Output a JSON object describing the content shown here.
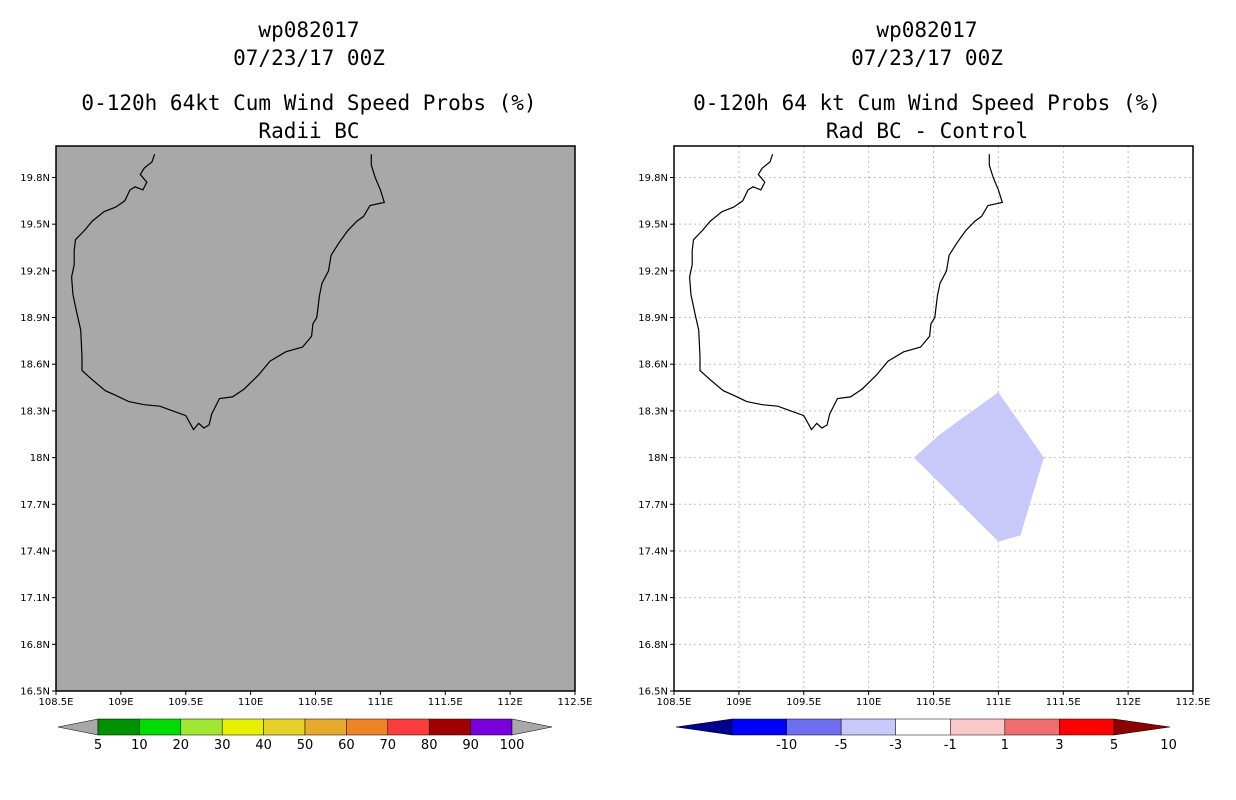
{
  "colors": {
    "land_fill_left": "#a8a8a8",
    "grid": "#bfbfbf",
    "diff_polygon": "#c8c8fa"
  },
  "left_panel": {
    "storm_id": "wp082017",
    "datetime": "07/23/17 00Z",
    "title": "0-120h 64kt Cum Wind Speed Probs (%)",
    "subtitle": "Radii BC",
    "lat_ticks": [
      "19.8N",
      "19.5N",
      "19.2N",
      "18.9N",
      "18.6N",
      "18.3N",
      "18N",
      "17.7N",
      "17.4N",
      "17.1N",
      "16.8N",
      "16.5N"
    ],
    "lon_ticks": [
      "108.5E",
      "109E",
      "109.5E",
      "110E",
      "110.5E",
      "111E",
      "111.5E",
      "112E",
      "112.5E"
    ],
    "colorbar": {
      "colors": [
        "#009100",
        "#00dc00",
        "#a0e632",
        "#e6f000",
        "#e6d228",
        "#e6aa2d",
        "#f08228",
        "#fa3c3c",
        "#a00000",
        "#7800dc"
      ],
      "labels": [
        "5",
        "10",
        "20",
        "30",
        "40",
        "50",
        "60",
        "70",
        "80",
        "90",
        "100"
      ]
    }
  },
  "right_panel": {
    "storm_id": "wp082017",
    "datetime": "07/23/17 00Z",
    "title": "0-120h 64 kt Cum Wind Speed Probs (%)",
    "subtitle": "Rad BC - Control",
    "lat_ticks": [
      "19.8N",
      "19.5N",
      "19.2N",
      "18.9N",
      "18.6N",
      "18.3N",
      "18N",
      "17.7N",
      "17.4N",
      "17.1N",
      "16.8N",
      "16.5N"
    ],
    "lon_ticks": [
      "108.5E",
      "109E",
      "109.5E",
      "110E",
      "110.5E",
      "111E",
      "111.5E",
      "112E",
      "112.5E"
    ],
    "colorbar": {
      "colors": [
        "#00008c",
        "#0000ff",
        "#6e6ef0",
        "#c8c8fa",
        "#ffffff",
        "#fac8c8",
        "#f06e6e",
        "#ff0000",
        "#8c0000"
      ],
      "labels": [
        "-10",
        "-5",
        "-3",
        "-1",
        "1",
        "3",
        "5",
        "10"
      ]
    },
    "difference_region": {
      "value_range": "-1 to -3",
      "lonlat": [
        [
          110.35,
          18.0
        ],
        [
          110.55,
          18.15
        ],
        [
          111.0,
          18.42
        ],
        [
          111.35,
          18.0
        ],
        [
          111.17,
          17.5
        ],
        [
          111.0,
          17.46
        ],
        [
          110.35,
          18.0
        ]
      ]
    }
  },
  "map": {
    "lon_range": [
      108.5,
      112.5
    ],
    "lat_range": [
      16.5,
      19.95
    ],
    "coast_lonlat": [
      [
        109.26,
        19.95
      ],
      [
        109.24,
        19.9
      ],
      [
        109.18,
        19.86
      ],
      [
        109.15,
        19.82
      ],
      [
        109.2,
        19.77
      ],
      [
        109.17,
        19.72
      ],
      [
        109.11,
        19.74
      ],
      [
        109.07,
        19.72
      ],
      [
        109.03,
        19.65
      ],
      [
        108.96,
        19.61
      ],
      [
        108.87,
        19.58
      ],
      [
        108.78,
        19.52
      ],
      [
        108.72,
        19.46
      ],
      [
        108.65,
        19.4
      ],
      [
        108.64,
        19.33
      ],
      [
        108.64,
        19.24
      ],
      [
        108.62,
        19.16
      ],
      [
        108.63,
        19.05
      ],
      [
        108.66,
        18.93
      ],
      [
        108.69,
        18.82
      ],
      [
        108.7,
        18.65
      ],
      [
        108.7,
        18.56
      ],
      [
        108.78,
        18.5
      ],
      [
        108.88,
        18.43
      ],
      [
        108.96,
        18.4
      ],
      [
        109.06,
        18.36
      ],
      [
        109.18,
        18.34
      ],
      [
        109.3,
        18.33
      ],
      [
        109.4,
        18.3
      ],
      [
        109.5,
        18.27
      ],
      [
        109.56,
        18.18
      ],
      [
        109.6,
        18.22
      ],
      [
        109.64,
        18.19
      ],
      [
        109.68,
        18.21
      ],
      [
        109.7,
        18.28
      ],
      [
        109.76,
        18.38
      ],
      [
        109.86,
        18.39
      ],
      [
        109.95,
        18.44
      ],
      [
        110.06,
        18.53
      ],
      [
        110.15,
        18.62
      ],
      [
        110.27,
        18.68
      ],
      [
        110.4,
        18.71
      ],
      [
        110.47,
        18.78
      ],
      [
        110.48,
        18.86
      ],
      [
        110.51,
        18.9
      ],
      [
        110.53,
        19.04
      ],
      [
        110.55,
        19.12
      ],
      [
        110.6,
        19.2
      ],
      [
        110.62,
        19.3
      ],
      [
        110.68,
        19.38
      ],
      [
        110.75,
        19.46
      ],
      [
        110.82,
        19.52
      ],
      [
        110.87,
        19.55
      ],
      [
        110.92,
        19.62
      ],
      [
        111.03,
        19.64
      ],
      [
        111.0,
        19.72
      ],
      [
        110.96,
        19.8
      ],
      [
        110.93,
        19.88
      ],
      [
        110.93,
        19.95
      ]
    ]
  }
}
